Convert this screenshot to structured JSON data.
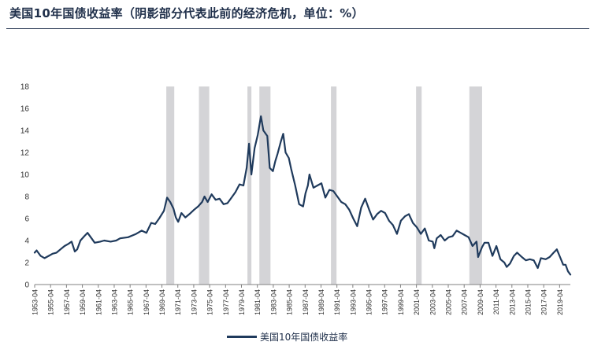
{
  "header": {
    "title": "美国10年国债收益率（阴影部分代表此前的经济危机，单位：%）"
  },
  "colors": {
    "line": "#1f3a5c",
    "shade": "#d4d4d7",
    "axis": "#808080",
    "text": "#333333"
  },
  "chart_data": {
    "type": "line",
    "title": "",
    "xlabel": "",
    "ylabel": "",
    "ylim": [
      0,
      18
    ],
    "yticks": [
      0,
      2,
      4,
      6,
      8,
      10,
      12,
      14,
      16,
      18
    ],
    "xlim": [
      1953.25,
      2020.6
    ],
    "xtick_labels": [
      "1953-04",
      "1955-04",
      "1957-04",
      "1959-04",
      "1961-04",
      "1963-04",
      "1965-04",
      "1967-04",
      "1969-04",
      "1971-04",
      "1973-04",
      "1975-04",
      "1977-04",
      "1979-04",
      "1981-04",
      "1983-04",
      "1985-04",
      "1987-04",
      "1989-04",
      "1991-04",
      "1993-04",
      "1995-04",
      "1997-04",
      "1999-04",
      "2001-04",
      "2003-04",
      "2005-04",
      "2007-04",
      "2009-04",
      "2011-04",
      "2013-04",
      "2015-04",
      "2017-04",
      "2019-04"
    ],
    "recessions": [
      [
        1969.8,
        1970.8
      ],
      [
        1973.9,
        1975.2
      ],
      [
        1980.0,
        1980.5
      ],
      [
        1981.5,
        1982.9
      ],
      [
        1990.5,
        1991.2
      ],
      [
        2001.2,
        2001.9
      ],
      [
        2007.9,
        2009.5
      ]
    ],
    "series": [
      {
        "name": "美国10年国债收益率",
        "x": [
          1953.25,
          1953.5,
          1954.0,
          1954.5,
          1955.0,
          1955.5,
          1956.0,
          1956.5,
          1957.0,
          1957.5,
          1957.9,
          1958.3,
          1958.6,
          1959.0,
          1959.5,
          1959.9,
          1960.4,
          1960.8,
          1961.5,
          1962.0,
          1962.8,
          1963.5,
          1964.0,
          1965.0,
          1966.0,
          1966.7,
          1967.3,
          1967.9,
          1968.4,
          1968.9,
          1969.5,
          1969.9,
          1970.3,
          1970.7,
          1971.0,
          1971.3,
          1971.7,
          1972.2,
          1972.7,
          1973.3,
          1973.8,
          1974.3,
          1974.6,
          1975.0,
          1975.5,
          1976.0,
          1976.5,
          1977.0,
          1977.5,
          1978.0,
          1978.5,
          1979.0,
          1979.5,
          1979.9,
          1980.2,
          1980.5,
          1980.9,
          1981.3,
          1981.7,
          1982.0,
          1982.5,
          1982.8,
          1983.2,
          1983.5,
          1983.8,
          1984.2,
          1984.5,
          1984.8,
          1985.2,
          1985.5,
          1986.0,
          1986.5,
          1987.0,
          1987.3,
          1987.6,
          1987.8,
          1988.3,
          1988.8,
          1989.3,
          1989.8,
          1990.3,
          1990.8,
          1991.3,
          1991.8,
          1992.3,
          1992.8,
          1993.3,
          1993.8,
          1994.3,
          1994.8,
          1995.3,
          1995.8,
          1996.3,
          1996.8,
          1997.3,
          1997.8,
          1998.3,
          1998.8,
          1999.3,
          1999.8,
          2000.3,
          2000.8,
          2001.3,
          2001.8,
          2002.3,
          2002.8,
          2003.3,
          2003.5,
          2003.8,
          2004.3,
          2004.8,
          2005.3,
          2005.8,
          2006.3,
          2006.8,
          2007.3,
          2007.8,
          2008.3,
          2008.8,
          2009.0,
          2009.5,
          2009.8,
          2010.3,
          2010.8,
          2011.3,
          2011.8,
          2012.3,
          2012.6,
          2013.0,
          2013.5,
          2013.9,
          2014.5,
          2015.0,
          2015.5,
          2016.0,
          2016.5,
          2016.9,
          2017.5,
          2018.0,
          2018.5,
          2018.9,
          2019.3,
          2019.7,
          2020.0,
          2020.3,
          2020.6
        ],
        "values": [
          2.9,
          3.1,
          2.6,
          2.4,
          2.6,
          2.8,
          2.9,
          3.2,
          3.5,
          3.7,
          3.9,
          3.0,
          3.2,
          4.0,
          4.4,
          4.7,
          4.2,
          3.8,
          3.9,
          4.0,
          3.9,
          4.0,
          4.2,
          4.3,
          4.6,
          4.9,
          4.7,
          5.6,
          5.5,
          6.0,
          6.7,
          7.9,
          7.5,
          6.9,
          6.1,
          5.7,
          6.5,
          6.1,
          6.4,
          6.8,
          7.1,
          7.5,
          8.0,
          7.5,
          8.2,
          7.7,
          7.8,
          7.3,
          7.4,
          7.9,
          8.4,
          9.1,
          9.0,
          10.6,
          12.8,
          10.0,
          12.4,
          13.6,
          15.3,
          14.0,
          13.5,
          10.6,
          10.3,
          11.2,
          11.9,
          13.0,
          13.7,
          12.0,
          11.5,
          10.5,
          9.0,
          7.3,
          7.1,
          8.3,
          9.0,
          10.0,
          8.8,
          9.0,
          9.2,
          7.9,
          8.6,
          8.5,
          8.0,
          7.5,
          7.3,
          6.8,
          6.0,
          5.3,
          7.0,
          7.8,
          6.8,
          5.9,
          6.4,
          6.7,
          6.5,
          5.8,
          5.4,
          4.6,
          5.8,
          6.2,
          6.4,
          5.6,
          5.2,
          4.6,
          5.1,
          4.0,
          3.9,
          3.3,
          4.2,
          4.5,
          4.0,
          4.3,
          4.4,
          4.9,
          4.7,
          4.5,
          4.3,
          3.5,
          3.9,
          2.5,
          3.4,
          3.8,
          3.8,
          2.6,
          3.5,
          2.3,
          2.0,
          1.6,
          1.9,
          2.6,
          2.9,
          2.5,
          2.2,
          2.3,
          2.2,
          1.5,
          2.4,
          2.3,
          2.5,
          2.9,
          3.2,
          2.5,
          1.8,
          1.8,
          1.2,
          0.9
        ]
      }
    ]
  },
  "legend": {
    "label": "美国10年国债收益率"
  }
}
